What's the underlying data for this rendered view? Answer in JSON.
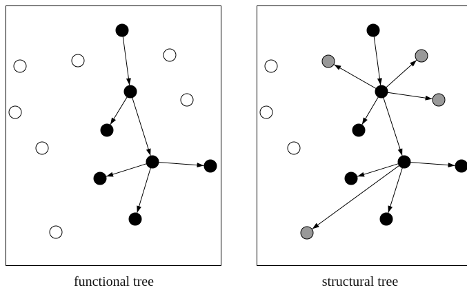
{
  "colors": {
    "active_node": "#000000",
    "inactive_node": "#ffffff",
    "structural_node": "#999999",
    "stroke": "#000000"
  },
  "panels": [
    {
      "id": "functional",
      "caption": "functional tree",
      "nodes": [
        {
          "id": "root",
          "kind": "active"
        },
        {
          "id": "mid",
          "kind": "active"
        },
        {
          "id": "mid-leaf",
          "kind": "active"
        },
        {
          "id": "hub",
          "kind": "active"
        },
        {
          "id": "hub-right",
          "kind": "active"
        },
        {
          "id": "hub-left",
          "kind": "active"
        },
        {
          "id": "hub-bottom",
          "kind": "active"
        },
        {
          "id": "free-1",
          "kind": "inactive"
        },
        {
          "id": "free-2",
          "kind": "inactive"
        },
        {
          "id": "free-3",
          "kind": "inactive"
        },
        {
          "id": "free-4",
          "kind": "inactive"
        },
        {
          "id": "free-5",
          "kind": "inactive"
        },
        {
          "id": "free-6",
          "kind": "inactive"
        },
        {
          "id": "free-7",
          "kind": "inactive"
        }
      ],
      "edges": [
        [
          "root",
          "mid"
        ],
        [
          "mid",
          "mid-leaf"
        ],
        [
          "mid",
          "hub"
        ],
        [
          "hub",
          "hub-right"
        ],
        [
          "hub",
          "hub-left"
        ],
        [
          "hub",
          "hub-bottom"
        ]
      ]
    },
    {
      "id": "structural",
      "caption": "structural tree",
      "nodes": [
        {
          "id": "root",
          "kind": "active"
        },
        {
          "id": "mid",
          "kind": "active"
        },
        {
          "id": "mid-leaf",
          "kind": "active"
        },
        {
          "id": "hub",
          "kind": "active"
        },
        {
          "id": "hub-right",
          "kind": "active"
        },
        {
          "id": "hub-left",
          "kind": "active"
        },
        {
          "id": "hub-bottom",
          "kind": "active"
        },
        {
          "id": "struct-1",
          "kind": "structural"
        },
        {
          "id": "struct-2",
          "kind": "structural"
        },
        {
          "id": "struct-3",
          "kind": "structural"
        },
        {
          "id": "struct-4",
          "kind": "structural"
        },
        {
          "id": "free-1",
          "kind": "inactive"
        },
        {
          "id": "free-2",
          "kind": "inactive"
        },
        {
          "id": "free-3",
          "kind": "inactive"
        }
      ],
      "edges": [
        [
          "root",
          "mid"
        ],
        [
          "mid",
          "struct-1"
        ],
        [
          "mid",
          "struct-2"
        ],
        [
          "mid",
          "struct-3"
        ],
        [
          "mid",
          "mid-leaf"
        ],
        [
          "mid",
          "hub"
        ],
        [
          "hub",
          "hub-right"
        ],
        [
          "hub",
          "hub-left"
        ],
        [
          "hub",
          "hub-bottom"
        ],
        [
          "hub",
          "struct-4"
        ]
      ]
    }
  ]
}
